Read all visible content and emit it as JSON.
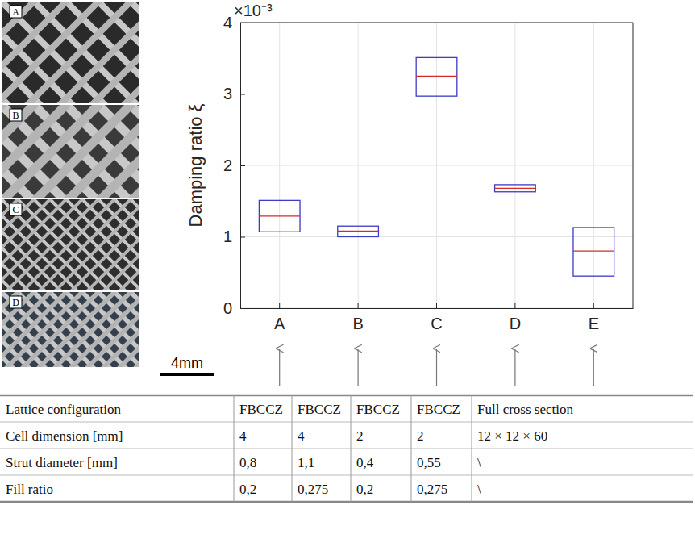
{
  "chart_data": {
    "type": "box",
    "ylabel": "Damping ratio ξ",
    "annotations": [
      "×10⁻³"
    ],
    "categories": [
      "A",
      "B",
      "C",
      "D",
      "E"
    ],
    "lower": [
      1.07,
      1.0,
      2.97,
      1.63,
      0.45
    ],
    "median": [
      1.29,
      1.08,
      3.25,
      1.68,
      0.8
    ],
    "upper": [
      1.51,
      1.15,
      3.51,
      1.73,
      1.13
    ],
    "color": "#3c3cc4",
    "ylim": [
      0,
      4
    ],
    "yticks": [
      0,
      1,
      2,
      3,
      4
    ],
    "grid": true
  },
  "photos": {
    "labels": [
      "A",
      "B",
      "C",
      "D"
    ],
    "scale_bar": "4mm"
  },
  "table": {
    "rows": [
      [
        "Lattice configuration",
        "FBCCZ",
        "FBCCZ",
        "FBCCZ",
        "FBCCZ",
        "Full cross section"
      ],
      [
        "Cell dimension [mm]",
        "4",
        "4",
        "2",
        "2",
        "12 × 12 × 60"
      ],
      [
        "Strut diameter [mm]",
        "0,8",
        "1,1",
        "0,4",
        "0,55",
        "\\"
      ],
      [
        "Fill ratio",
        "0,2",
        "0,275",
        "0,2",
        "0,275",
        "\\"
      ]
    ]
  }
}
